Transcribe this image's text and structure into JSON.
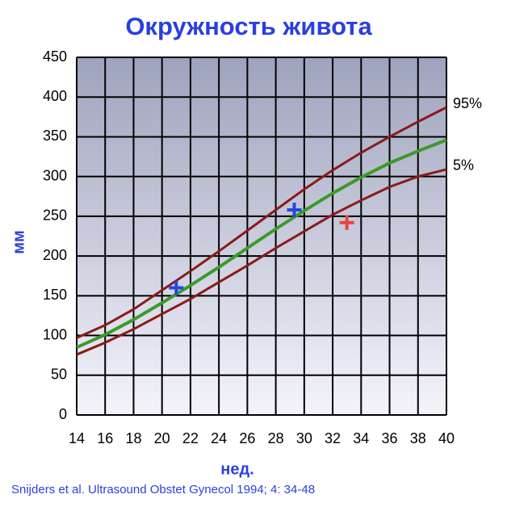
{
  "chart_data": {
    "type": "line",
    "title": "Окружность живота",
    "xlabel": "нед.",
    "ylabel": "мм",
    "source": "Snijders et al. Ultrasound Obstet Gynecol 1994; 4: 34-48",
    "x": [
      14,
      16,
      18,
      20,
      22,
      24,
      26,
      28,
      30,
      32,
      34,
      36,
      38,
      40
    ],
    "series": [
      {
        "name": "95%",
        "color": "#8b1a1a",
        "values": [
          97,
          113,
          133,
          157,
          181,
          206,
          232,
          258,
          284,
          308,
          330,
          350,
          369,
          387
        ]
      },
      {
        "color": "#3c9a2a",
        "values": [
          85,
          101,
          120,
          141,
          163,
          186,
          210,
          234,
          257,
          279,
          299,
          317,
          332,
          346
        ]
      },
      {
        "name": "5%",
        "color": "#8b1a1a",
        "values": [
          76,
          91,
          108,
          127,
          146,
          167,
          188,
          210,
          231,
          252,
          270,
          287,
          300,
          309
        ]
      }
    ],
    "markers": [
      {
        "x": 21,
        "y": 160,
        "color": "#2347e0"
      },
      {
        "x": 29.3,
        "y": 258,
        "color": "#2347e0"
      },
      {
        "x": 33,
        "y": 242,
        "color": "#e8463a"
      }
    ],
    "xlim": [
      14,
      40
    ],
    "xticks": [
      14,
      16,
      18,
      20,
      22,
      24,
      26,
      28,
      30,
      32,
      34,
      36,
      38,
      40
    ],
    "ylim": [
      0,
      450
    ],
    "yticks": [
      0,
      50,
      100,
      150,
      200,
      250,
      300,
      350,
      400,
      450
    ],
    "grid": true
  }
}
